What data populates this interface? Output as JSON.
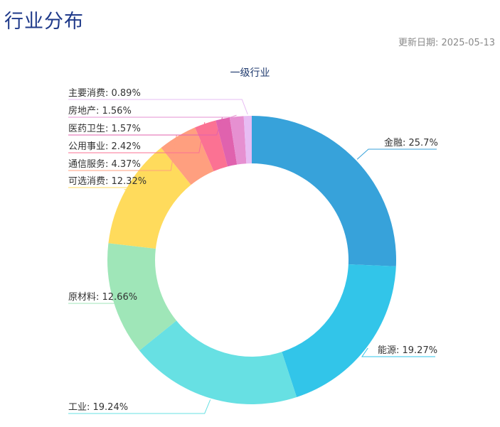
{
  "header": {
    "title": "行业分布",
    "update_label": "更新日期: 2025-05-13"
  },
  "chart_data": {
    "type": "pie",
    "variant": "donut",
    "title": "一级行业",
    "categories": [
      "金融",
      "能源",
      "工业",
      "原材料",
      "可选消费",
      "通信服务",
      "公用事业",
      "医药卫生",
      "房地产",
      "主要消费"
    ],
    "values": [
      25.7,
      19.27,
      19.24,
      12.66,
      12.32,
      4.37,
      2.42,
      1.57,
      1.56,
      0.89
    ],
    "unit": "%",
    "colors": [
      "#37A2DA",
      "#32C5E9",
      "#67E0E3",
      "#9FE6B8",
      "#FFDB5C",
      "#FF9F7F",
      "#FB7293",
      "#E062AE",
      "#E690D1",
      "#E7BCF3"
    ],
    "labels": [
      "金融: 25.7%",
      "能源: 19.27%",
      "工业: 19.24%",
      "原材料: 12.66%",
      "可选消费: 12.32%",
      "通信服务: 4.37%",
      "公用事业: 2.42%",
      "医药卫生: 1.57%",
      "房地产: 1.56%",
      "主要消费: 0.89%"
    ],
    "legend": "none",
    "start_angle": "12 o'clock, clockwise"
  }
}
